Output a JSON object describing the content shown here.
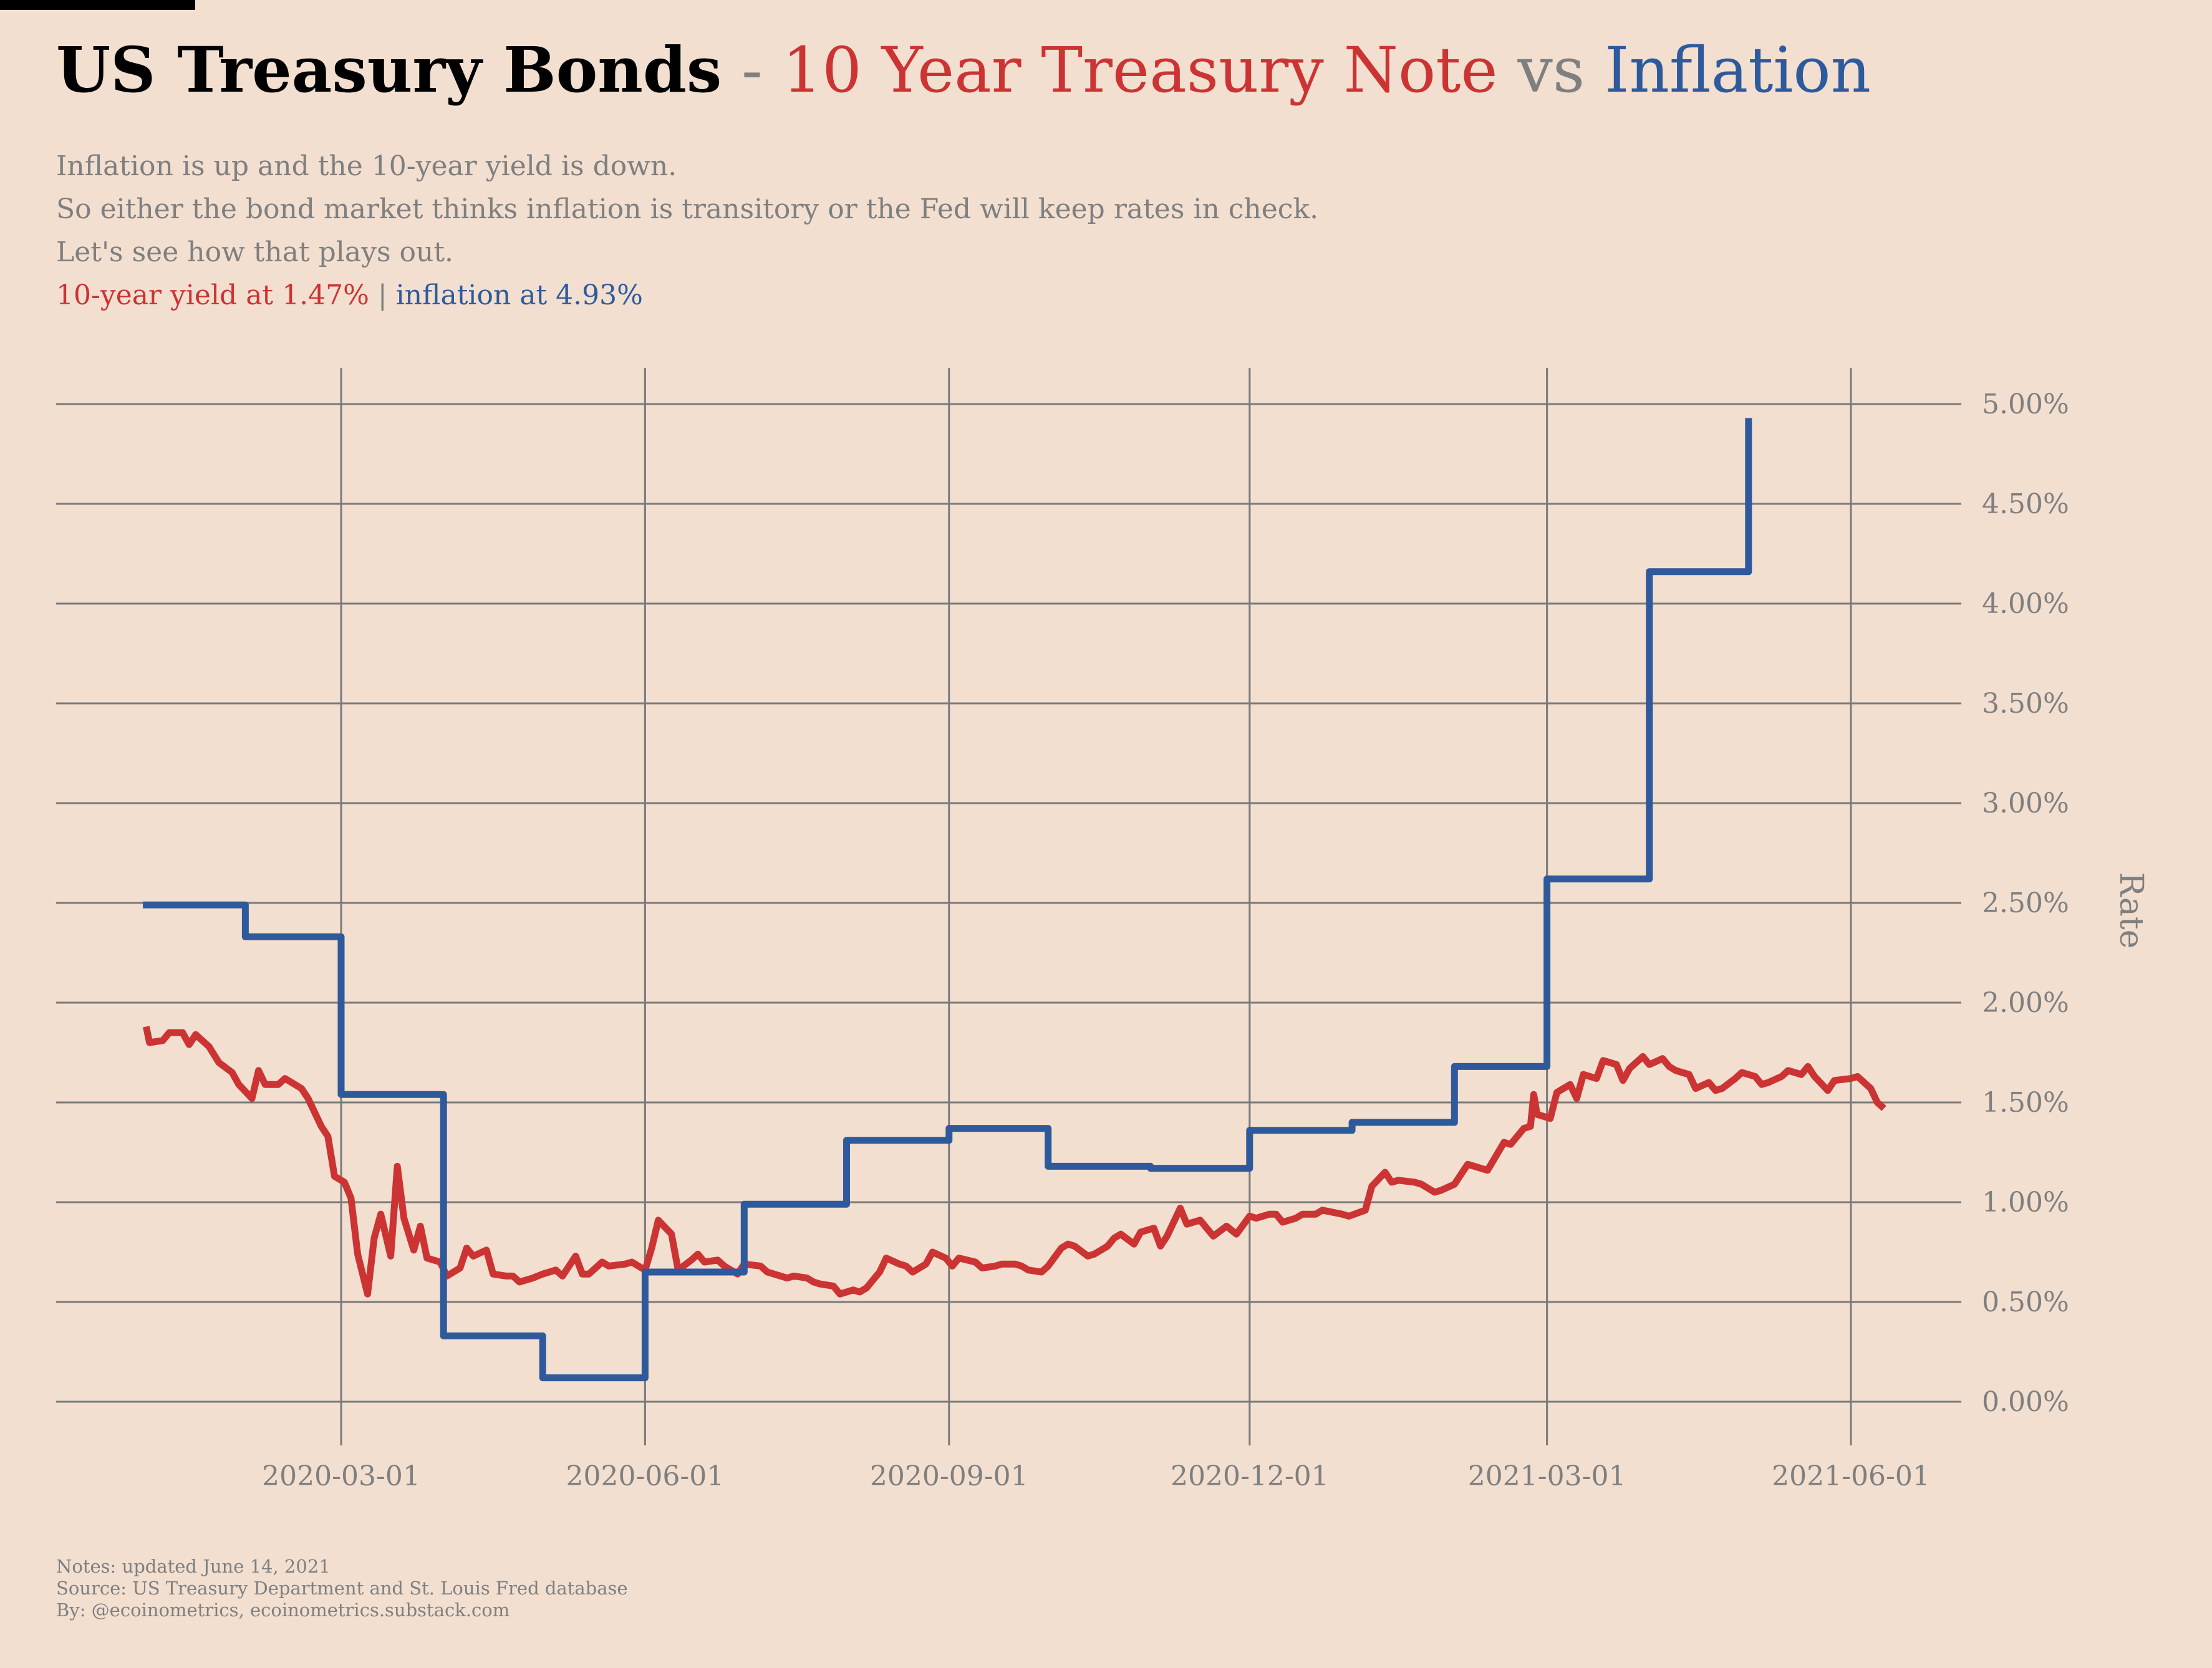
{
  "header": {
    "title_bold": "US Treasury Bonds",
    "title_sep": "-",
    "title_series1": "10 Year Treasury Note",
    "title_vs": "vs",
    "title_series2": "Inflation"
  },
  "subtitle": {
    "line1": "Inflation is up and the 10-year yield is down.",
    "line2": "So either the bond market thinks inflation is transitory or the Fed will keep rates in check.",
    "line3": "Let's see how that plays out.",
    "yield_text": "10-year yield at 1.47%",
    "divider": "|",
    "inflation_text": "inflation at 4.93%"
  },
  "notes": {
    "line1": "Notes: updated June 14, 2021",
    "line2": "Source: US Treasury Department and St. Louis Fred database",
    "line3": "By: @ecoinometrics, ecoinometrics.substack.com"
  },
  "colors": {
    "background": "#f2dfd0",
    "yield": "#cc3333",
    "inflation": "#2e5a9c",
    "grid": "#7a7a7a",
    "text_muted": "#7f7f7f"
  },
  "chart_data": {
    "type": "line",
    "ylabel": "Rate",
    "y_tick_labels": [
      "0.00%",
      "0.50%",
      "1.00%",
      "1.50%",
      "2.00%",
      "2.50%",
      "3.00%",
      "3.50%",
      "4.00%",
      "4.50%",
      "5.00%"
    ],
    "y_ticks": [
      0,
      0.5,
      1,
      1.5,
      2,
      2.5,
      3,
      3.5,
      4,
      4.5,
      5
    ],
    "ylim": [
      0,
      5
    ],
    "x_tick_labels": [
      "2020-03-01",
      "2020-06-01",
      "2020-09-01",
      "2020-12-01",
      "2021-03-01",
      "2021-06-01"
    ],
    "x_ticks": [
      "2020-03-01",
      "2020-06-01",
      "2020-09-01",
      "2020-12-01",
      "2021-03-01",
      "2021-06-01"
    ],
    "grid": true,
    "series": [
      {
        "name": "10 Year Treasury Note",
        "color": "#cc3333",
        "style": "line",
        "points": [
          [
            "2020-01-02",
            1.88
          ],
          [
            "2020-01-03",
            1.8
          ],
          [
            "2020-01-07",
            1.81
          ],
          [
            "2020-01-09",
            1.85
          ],
          [
            "2020-01-13",
            1.85
          ],
          [
            "2020-01-15",
            1.79
          ],
          [
            "2020-01-17",
            1.84
          ],
          [
            "2020-01-21",
            1.78
          ],
          [
            "2020-01-24",
            1.7
          ],
          [
            "2020-01-28",
            1.65
          ],
          [
            "2020-01-30",
            1.59
          ],
          [
            "2020-02-03",
            1.52
          ],
          [
            "2020-02-05",
            1.66
          ],
          [
            "2020-02-07",
            1.59
          ],
          [
            "2020-02-11",
            1.59
          ],
          [
            "2020-02-13",
            1.62
          ],
          [
            "2020-02-18",
            1.57
          ],
          [
            "2020-02-20",
            1.52
          ],
          [
            "2020-02-24",
            1.38
          ],
          [
            "2020-02-26",
            1.33
          ],
          [
            "2020-02-28",
            1.13
          ],
          [
            "2020-03-02",
            1.1
          ],
          [
            "2020-03-04",
            1.02
          ],
          [
            "2020-03-06",
            0.74
          ],
          [
            "2020-03-09",
            0.54
          ],
          [
            "2020-03-11",
            0.82
          ],
          [
            "2020-03-13",
            0.94
          ],
          [
            "2020-03-16",
            0.73
          ],
          [
            "2020-03-18",
            1.18
          ],
          [
            "2020-03-20",
            0.92
          ],
          [
            "2020-03-23",
            0.76
          ],
          [
            "2020-03-25",
            0.88
          ],
          [
            "2020-03-27",
            0.72
          ],
          [
            "2020-03-31",
            0.7
          ],
          [
            "2020-04-02",
            0.63
          ],
          [
            "2020-04-06",
            0.67
          ],
          [
            "2020-04-08",
            0.77
          ],
          [
            "2020-04-10",
            0.73
          ],
          [
            "2020-04-14",
            0.76
          ],
          [
            "2020-04-16",
            0.64
          ],
          [
            "2020-04-20",
            0.63
          ],
          [
            "2020-04-22",
            0.63
          ],
          [
            "2020-04-24",
            0.6
          ],
          [
            "2020-04-28",
            0.62
          ],
          [
            "2020-05-01",
            0.64
          ],
          [
            "2020-05-05",
            0.66
          ],
          [
            "2020-05-07",
            0.63
          ],
          [
            "2020-05-11",
            0.73
          ],
          [
            "2020-05-13",
            0.64
          ],
          [
            "2020-05-15",
            0.64
          ],
          [
            "2020-05-19",
            0.7
          ],
          [
            "2020-05-21",
            0.68
          ],
          [
            "2020-05-26",
            0.69
          ],
          [
            "2020-05-28",
            0.7
          ],
          [
            "2020-06-01",
            0.66
          ],
          [
            "2020-06-03",
            0.77
          ],
          [
            "2020-06-05",
            0.91
          ],
          [
            "2020-06-09",
            0.84
          ],
          [
            "2020-06-11",
            0.66
          ],
          [
            "2020-06-15",
            0.71
          ],
          [
            "2020-06-17",
            0.74
          ],
          [
            "2020-06-19",
            0.7
          ],
          [
            "2020-06-23",
            0.71
          ],
          [
            "2020-06-25",
            0.68
          ],
          [
            "2020-06-29",
            0.64
          ],
          [
            "2020-07-01",
            0.69
          ],
          [
            "2020-07-06",
            0.68
          ],
          [
            "2020-07-08",
            0.65
          ],
          [
            "2020-07-10",
            0.64
          ],
          [
            "2020-07-14",
            0.62
          ],
          [
            "2020-07-16",
            0.63
          ],
          [
            "2020-07-20",
            0.62
          ],
          [
            "2020-07-22",
            0.6
          ],
          [
            "2020-07-24",
            0.59
          ],
          [
            "2020-07-28",
            0.58
          ],
          [
            "2020-07-30",
            0.54
          ],
          [
            "2020-08-03",
            0.56
          ],
          [
            "2020-08-05",
            0.55
          ],
          [
            "2020-08-07",
            0.57
          ],
          [
            "2020-08-11",
            0.65
          ],
          [
            "2020-08-13",
            0.72
          ],
          [
            "2020-08-17",
            0.69
          ],
          [
            "2020-08-19",
            0.68
          ],
          [
            "2020-08-21",
            0.65
          ],
          [
            "2020-08-25",
            0.69
          ],
          [
            "2020-08-27",
            0.75
          ],
          [
            "2020-08-31",
            0.72
          ],
          [
            "2020-09-02",
            0.68
          ],
          [
            "2020-09-04",
            0.72
          ],
          [
            "2020-09-09",
            0.7
          ],
          [
            "2020-09-11",
            0.67
          ],
          [
            "2020-09-15",
            0.68
          ],
          [
            "2020-09-17",
            0.69
          ],
          [
            "2020-09-21",
            0.69
          ],
          [
            "2020-09-23",
            0.68
          ],
          [
            "2020-09-25",
            0.66
          ],
          [
            "2020-09-29",
            0.65
          ],
          [
            "2020-10-01",
            0.68
          ],
          [
            "2020-10-05",
            0.77
          ],
          [
            "2020-10-07",
            0.79
          ],
          [
            "2020-10-09",
            0.78
          ],
          [
            "2020-10-13",
            0.73
          ],
          [
            "2020-10-15",
            0.74
          ],
          [
            "2020-10-19",
            0.78
          ],
          [
            "2020-10-21",
            0.82
          ],
          [
            "2020-10-23",
            0.84
          ],
          [
            "2020-10-27",
            0.79
          ],
          [
            "2020-10-29",
            0.85
          ],
          [
            "2020-11-02",
            0.87
          ],
          [
            "2020-11-04",
            0.78
          ],
          [
            "2020-11-06",
            0.83
          ],
          [
            "2020-11-10",
            0.97
          ],
          [
            "2020-11-12",
            0.89
          ],
          [
            "2020-11-16",
            0.91
          ],
          [
            "2020-11-18",
            0.87
          ],
          [
            "2020-11-20",
            0.83
          ],
          [
            "2020-11-24",
            0.88
          ],
          [
            "2020-11-27",
            0.84
          ],
          [
            "2020-12-01",
            0.93
          ],
          [
            "2020-12-03",
            0.92
          ],
          [
            "2020-12-07",
            0.94
          ],
          [
            "2020-12-09",
            0.94
          ],
          [
            "2020-12-11",
            0.9
          ],
          [
            "2020-12-15",
            0.92
          ],
          [
            "2020-12-17",
            0.94
          ],
          [
            "2020-12-21",
            0.94
          ],
          [
            "2020-12-23",
            0.96
          ],
          [
            "2020-12-29",
            0.94
          ],
          [
            "2020-12-31",
            0.93
          ],
          [
            "2021-01-05",
            0.96
          ],
          [
            "2021-01-07",
            1.08
          ],
          [
            "2021-01-11",
            1.15
          ],
          [
            "2021-01-13",
            1.1
          ],
          [
            "2021-01-15",
            1.11
          ],
          [
            "2021-01-20",
            1.1
          ],
          [
            "2021-01-22",
            1.09
          ],
          [
            "2021-01-26",
            1.05
          ],
          [
            "2021-01-28",
            1.06
          ],
          [
            "2021-02-01",
            1.09
          ],
          [
            "2021-02-03",
            1.14
          ],
          [
            "2021-02-05",
            1.19
          ],
          [
            "2021-02-09",
            1.17
          ],
          [
            "2021-02-11",
            1.16
          ],
          [
            "2021-02-16",
            1.3
          ],
          [
            "2021-02-18",
            1.29
          ],
          [
            "2021-02-22",
            1.37
          ],
          [
            "2021-02-24",
            1.38
          ],
          [
            "2021-02-25",
            1.54
          ],
          [
            "2021-02-26",
            1.44
          ],
          [
            "2021-03-02",
            1.42
          ],
          [
            "2021-03-04",
            1.55
          ],
          [
            "2021-03-08",
            1.59
          ],
          [
            "2021-03-10",
            1.52
          ],
          [
            "2021-03-12",
            1.64
          ],
          [
            "2021-03-16",
            1.62
          ],
          [
            "2021-03-18",
            1.71
          ],
          [
            "2021-03-22",
            1.69
          ],
          [
            "2021-03-24",
            1.61
          ],
          [
            "2021-03-26",
            1.67
          ],
          [
            "2021-03-30",
            1.73
          ],
          [
            "2021-04-01",
            1.69
          ],
          [
            "2021-04-05",
            1.72
          ],
          [
            "2021-04-07",
            1.68
          ],
          [
            "2021-04-09",
            1.66
          ],
          [
            "2021-04-13",
            1.64
          ],
          [
            "2021-04-15",
            1.57
          ],
          [
            "2021-04-19",
            1.6
          ],
          [
            "2021-04-21",
            1.56
          ],
          [
            "2021-04-23",
            1.57
          ],
          [
            "2021-04-27",
            1.62
          ],
          [
            "2021-04-29",
            1.65
          ],
          [
            "2021-05-03",
            1.63
          ],
          [
            "2021-05-05",
            1.59
          ],
          [
            "2021-05-07",
            1.6
          ],
          [
            "2021-05-11",
            1.63
          ],
          [
            "2021-05-13",
            1.66
          ],
          [
            "2021-05-17",
            1.64
          ],
          [
            "2021-05-19",
            1.68
          ],
          [
            "2021-05-21",
            1.63
          ],
          [
            "2021-05-25",
            1.56
          ],
          [
            "2021-05-27",
            1.61
          ],
          [
            "2021-06-01",
            1.62
          ],
          [
            "2021-06-03",
            1.63
          ],
          [
            "2021-06-07",
            1.57
          ],
          [
            "2021-06-09",
            1.5
          ],
          [
            "2021-06-11",
            1.47
          ]
        ]
      },
      {
        "name": "Inflation",
        "color": "#2e5a9c",
        "style": "step",
        "points": [
          [
            "2020-01-01",
            2.49
          ],
          [
            "2020-02-01",
            2.33
          ],
          [
            "2020-03-01",
            1.54
          ],
          [
            "2020-04-01",
            0.33
          ],
          [
            "2020-05-01",
            0.12
          ],
          [
            "2020-06-01",
            0.65
          ],
          [
            "2020-07-01",
            0.99
          ],
          [
            "2020-08-01",
            1.31
          ],
          [
            "2020-09-01",
            1.37
          ],
          [
            "2020-10-01",
            1.18
          ],
          [
            "2020-11-01",
            1.17
          ],
          [
            "2020-12-01",
            1.36
          ],
          [
            "2021-01-01",
            1.4
          ],
          [
            "2021-02-01",
            1.68
          ],
          [
            "2021-03-01",
            2.62
          ],
          [
            "2021-04-01",
            4.16
          ],
          [
            "2021-05-01",
            4.93
          ],
          [
            "2021-05-01",
            4.93
          ]
        ]
      }
    ]
  }
}
